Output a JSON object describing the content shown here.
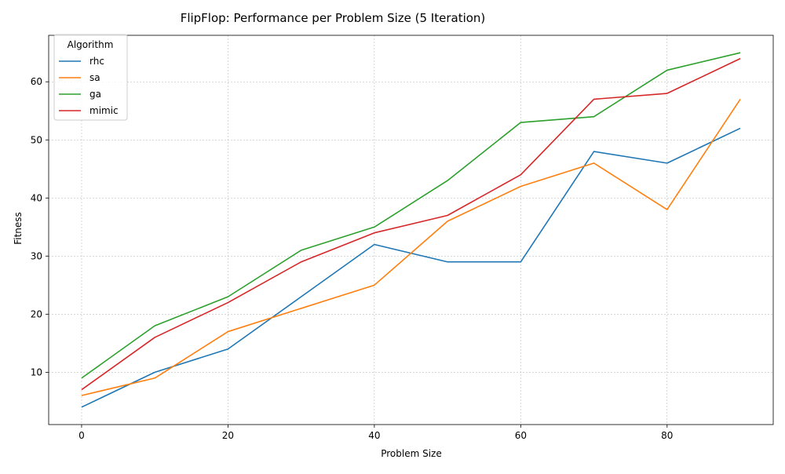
{
  "chart_data": {
    "type": "line",
    "title": "FlipFlop: Performance per Problem Size (5 Iteration)",
    "xlabel": "Problem Size",
    "ylabel": "Fitness",
    "x": [
      0,
      10,
      20,
      30,
      40,
      50,
      60,
      70,
      80,
      90
    ],
    "xlim": [
      -4.5,
      94.5
    ],
    "ylim": [
      1,
      68
    ],
    "xticks": [
      0,
      20,
      40,
      60,
      80
    ],
    "yticks": [
      10,
      20,
      30,
      40,
      50,
      60
    ],
    "grid": true,
    "legend": {
      "title": "Algorithm",
      "placement": "top-left"
    },
    "series": [
      {
        "name": "rhc",
        "color": "#1f77b4",
        "values": [
          4,
          10,
          14,
          23,
          32,
          29,
          29,
          48,
          46,
          52
        ]
      },
      {
        "name": "sa",
        "color": "#ff7f0e",
        "values": [
          6,
          9,
          17,
          21,
          25,
          36,
          42,
          46,
          38,
          57
        ]
      },
      {
        "name": "ga",
        "color": "#2ca02c",
        "values": [
          9,
          18,
          23,
          31,
          35,
          43,
          53,
          54,
          62,
          65
        ]
      },
      {
        "name": "mimic",
        "color": "#d62728",
        "values": [
          7,
          16,
          22,
          29,
          34,
          37,
          44,
          57,
          58,
          64
        ]
      }
    ]
  }
}
